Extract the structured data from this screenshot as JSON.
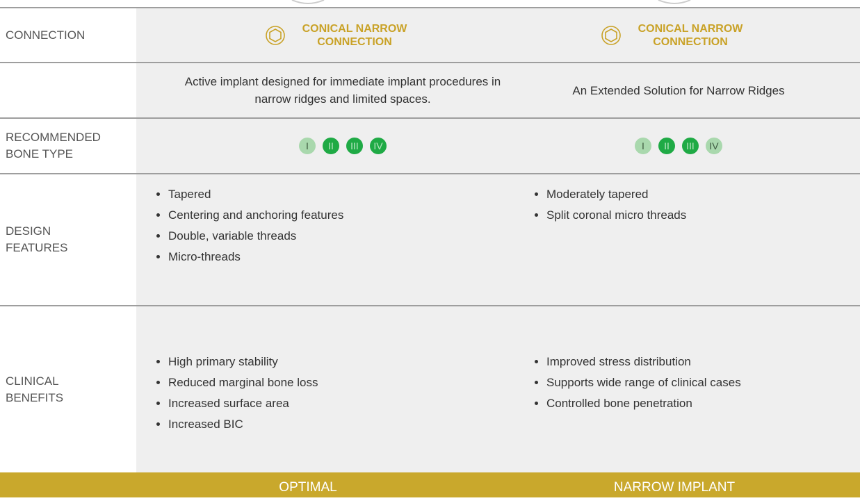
{
  "row_labels": {
    "connection": "CONNECTION",
    "bone_type": "RECOMMENDED BONE TYPE",
    "design_features": "DESIGN FEATURES",
    "clinical_benefits": "CLINICAL BENEFITS"
  },
  "columns": [
    {
      "connection": "CONICAL NARROW CONNECTION",
      "description": "Active implant designed for immediate implant procedures in narrow ridges and limited spaces.",
      "bone_types": [
        {
          "label": "I",
          "highlighted": false
        },
        {
          "label": "II",
          "highlighted": true
        },
        {
          "label": "III",
          "highlighted": true
        },
        {
          "label": "IV",
          "highlighted": true
        }
      ],
      "design_features": [
        "Tapered",
        "Centering and anchoring features",
        "Double, variable threads",
        "Micro-threads"
      ],
      "clinical_benefits": [
        "High primary stability",
        "Reduced marginal bone loss",
        "Increased surface area",
        "Increased BIC"
      ],
      "footer": "OPTIMAL"
    },
    {
      "connection": "CONICAL NARROW CONNECTION",
      "description": "An Extended Solution for Narrow Ridges",
      "bone_types": [
        {
          "label": "I",
          "highlighted": false
        },
        {
          "label": "II",
          "highlighted": true
        },
        {
          "label": "III",
          "highlighted": true
        },
        {
          "label": "IV",
          "highlighted": false
        }
      ],
      "design_features": [
        "Moderately tapered",
        "Split coronal micro threads"
      ],
      "clinical_benefits": [
        "Improved stress distribution",
        "Supports wide range of clinical cases",
        "Controlled bone penetration"
      ],
      "footer": "NARROW IMPLANT"
    }
  ]
}
